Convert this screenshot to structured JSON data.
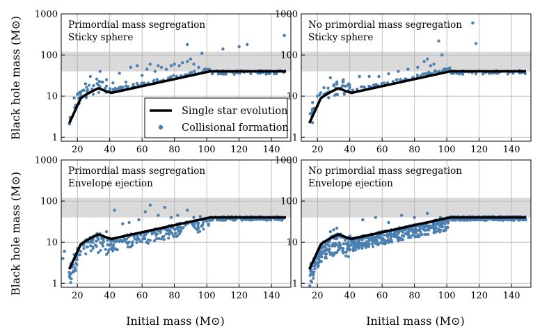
{
  "figure": {
    "ylabel": "Black hole mass (M⊙)",
    "xlabel": "Initial mass (M⊙)"
  },
  "legend": {
    "line_label": "Single star evolution",
    "scatter_label": "Collisional formation"
  },
  "colors": {
    "line": "#000000",
    "scatter": "#4a7fb0",
    "band": "#d3d3d3",
    "grid": "#b0b0b0"
  },
  "chart_data": [
    {
      "type": "scatter",
      "title": "Primordial mass segregation",
      "subtitle": "Sticky sphere",
      "xlabel": "",
      "ylabel": "Black hole mass (M⊙)",
      "xlim": [
        10,
        152
      ],
      "ylim": [
        0.8,
        1000
      ],
      "yscale": "log",
      "x_ticks": [
        20,
        40,
        60,
        80,
        100,
        120,
        140
      ],
      "y_ticks": [
        1,
        10,
        100,
        1000
      ],
      "shaded_band": [
        40,
        120
      ],
      "series": [
        {
          "name": "Single star evolution",
          "type": "line"
        },
        {
          "name": "Collisional formation",
          "type": "scatter",
          "points": [
            [
              18,
              9
            ],
            [
              19,
              6
            ],
            [
              20,
              11
            ],
            [
              21,
              12
            ],
            [
              22,
              10
            ],
            [
              24,
              14
            ],
            [
              25,
              20
            ],
            [
              26,
              13
            ],
            [
              28,
              30
            ],
            [
              30,
              18
            ],
            [
              32,
              26
            ],
            [
              34,
              40
            ],
            [
              35,
              22
            ],
            [
              38,
              25
            ],
            [
              42,
              21
            ],
            [
              46,
              36
            ],
            [
              50,
              22
            ],
            [
              53,
              50
            ],
            [
              57,
              55
            ],
            [
              60,
              32
            ],
            [
              63,
              45
            ],
            [
              65,
              60
            ],
            [
              68,
              40
            ],
            [
              70,
              55
            ],
            [
              72,
              50
            ],
            [
              75,
              45
            ],
            [
              78,
              55
            ],
            [
              80,
              60
            ],
            [
              83,
              55
            ],
            [
              85,
              65
            ],
            [
              88,
              70
            ],
            [
              90,
              80
            ],
            [
              92,
              60
            ],
            [
              95,
              50
            ],
            [
              97,
              110
            ],
            [
              100,
              45
            ],
            [
              110,
              140
            ],
            [
              120,
              160
            ],
            [
              125,
              180
            ],
            [
              148,
              300
            ],
            [
              88,
              180
            ]
          ]
        }
      ]
    },
    {
      "type": "scatter",
      "title": "No primordial mass segregation",
      "subtitle": "Sticky sphere",
      "xlabel": "",
      "ylabel": "",
      "xlim": [
        10,
        152
      ],
      "ylim": [
        0.8,
        1000
      ],
      "yscale": "log",
      "x_ticks": [
        20,
        40,
        60,
        80,
        100,
        120,
        140
      ],
      "y_ticks": [
        1,
        10,
        100,
        1000
      ],
      "shaded_band": [
        40,
        120
      ],
      "series": [
        {
          "name": "Single star evolution",
          "type": "line"
        },
        {
          "name": "Collisional formation",
          "type": "scatter",
          "points": [
            [
              17,
              7
            ],
            [
              18,
              5
            ],
            [
              20,
              10
            ],
            [
              22,
              12
            ],
            [
              24,
              16
            ],
            [
              26,
              12
            ],
            [
              28,
              28
            ],
            [
              30,
              18
            ],
            [
              32,
              22
            ],
            [
              36,
              25
            ],
            [
              40,
              16
            ],
            [
              46,
              30
            ],
            [
              52,
              30
            ],
            [
              58,
              30
            ],
            [
              64,
              35
            ],
            [
              70,
              40
            ],
            [
              76,
              45
            ],
            [
              82,
              50
            ],
            [
              86,
              70
            ],
            [
              88,
              80
            ],
            [
              90,
              55
            ],
            [
              92,
              60
            ],
            [
              95,
              220
            ],
            [
              97,
              100
            ],
            [
              100,
              45
            ],
            [
              116,
              600
            ],
            [
              118,
              190
            ]
          ]
        }
      ]
    },
    {
      "type": "scatter",
      "title": "Primordial mass segregation",
      "subtitle": "Envelope ejection",
      "xlabel": "Initial mass (M⊙)",
      "ylabel": "Black hole mass (M⊙)",
      "xlim": [
        10,
        152
      ],
      "ylim": [
        0.8,
        1000
      ],
      "yscale": "log",
      "x_ticks": [
        20,
        40,
        60,
        80,
        100,
        120,
        140
      ],
      "y_ticks": [
        1,
        10,
        100,
        1000
      ],
      "shaded_band": [
        40,
        120
      ],
      "series": [
        {
          "name": "Single star evolution",
          "type": "line"
        },
        {
          "name": "Collisional formation",
          "type": "scatter",
          "points": [
            [
              11,
              4
            ],
            [
              12,
              6
            ],
            [
              16,
              3
            ],
            [
              18,
              5
            ],
            [
              20,
              7
            ],
            [
              22,
              6
            ],
            [
              24,
              9
            ],
            [
              26,
              10
            ],
            [
              28,
              12
            ],
            [
              30,
              14
            ],
            [
              34,
              16
            ],
            [
              38,
              18
            ],
            [
              43,
              60
            ],
            [
              48,
              28
            ],
            [
              52,
              30
            ],
            [
              58,
              35
            ],
            [
              62,
              55
            ],
            [
              65,
              80
            ],
            [
              70,
              45
            ],
            [
              74,
              70
            ],
            [
              78,
              40
            ],
            [
              82,
              45
            ],
            [
              88,
              60
            ],
            [
              92,
              40
            ],
            [
              96,
              42
            ]
          ]
        }
      ]
    },
    {
      "type": "scatter",
      "title": "No primordial mass segregation",
      "subtitle": "Envelope ejection",
      "xlabel": "Initial mass (M⊙)",
      "ylabel": "",
      "xlim": [
        10,
        152
      ],
      "ylim": [
        0.8,
        1000
      ],
      "yscale": "log",
      "x_ticks": [
        20,
        40,
        60,
        80,
        100,
        120,
        140
      ],
      "y_ticks": [
        1,
        10,
        100,
        1000
      ],
      "shaded_band": [
        40,
        120
      ],
      "series": [
        {
          "name": "Single star evolution",
          "type": "line"
        },
        {
          "name": "Collisional formation",
          "type": "scatter",
          "points": [
            [
              16,
              3
            ],
            [
              18,
              4
            ],
            [
              20,
              5
            ],
            [
              22,
              6
            ],
            [
              24,
              8
            ],
            [
              26,
              10
            ],
            [
              28,
              18
            ],
            [
              30,
              20
            ],
            [
              32,
              22
            ],
            [
              34,
              15
            ],
            [
              40,
              14
            ],
            [
              48,
              35
            ],
            [
              56,
              40
            ],
            [
              64,
              30
            ],
            [
              72,
              45
            ],
            [
              80,
              40
            ],
            [
              88,
              50
            ],
            [
              96,
              40
            ]
          ]
        }
      ]
    }
  ]
}
